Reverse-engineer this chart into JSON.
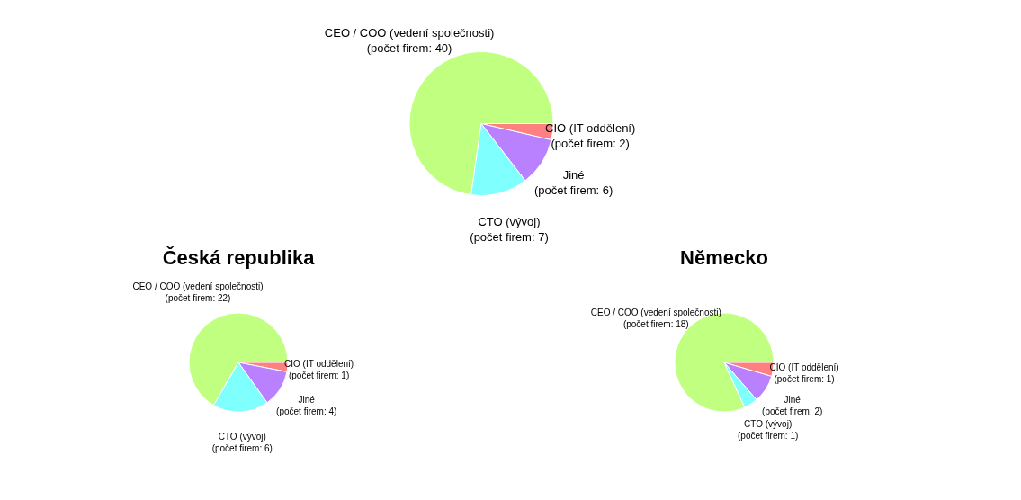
{
  "chart_data": [
    {
      "type": "pie",
      "categories": [
        "CEO / COO (vedení společnosti)",
        "CIO (IT oddělení)",
        "Jiné",
        "CTO (vývoj)"
      ],
      "values": [
        40,
        2,
        6,
        7
      ],
      "colors": [
        "#c0ff80",
        "#ff8080",
        "#b980ff",
        "#80ffff"
      ],
      "value_labels": [
        "(počet firem: 40)",
        "(počet firem: 2)",
        "(počet firem: 6)",
        "(počet firem: 7)"
      ]
    },
    {
      "type": "pie",
      "title": "Česká republika",
      "categories": [
        "CEO / COO (vedení společnosti)",
        "CIO (IT oddělení)",
        "Jiné",
        "CTO (vývoj)"
      ],
      "values": [
        22,
        1,
        4,
        6
      ],
      "colors": [
        "#c0ff80",
        "#ff8080",
        "#b980ff",
        "#80ffff"
      ],
      "value_labels": [
        "(počet firem: 22)",
        "(počet firem: 1)",
        "(počet firem: 4)",
        "(počet firem: 6)"
      ]
    },
    {
      "type": "pie",
      "title": "Německo",
      "categories": [
        "CEO / COO (vedení společnosti)",
        "CIO (IT oddělení)",
        "Jiné",
        "CTO (vývoj)"
      ],
      "values": [
        18,
        1,
        2,
        1
      ],
      "colors": [
        "#c0ff80",
        "#ff8080",
        "#b980ff",
        "#80ffff"
      ],
      "value_labels": [
        "(počet firem: 18)",
        "(počet firem: 1)",
        "(počet firem: 2)",
        "(počet firem: 1)"
      ]
    }
  ]
}
